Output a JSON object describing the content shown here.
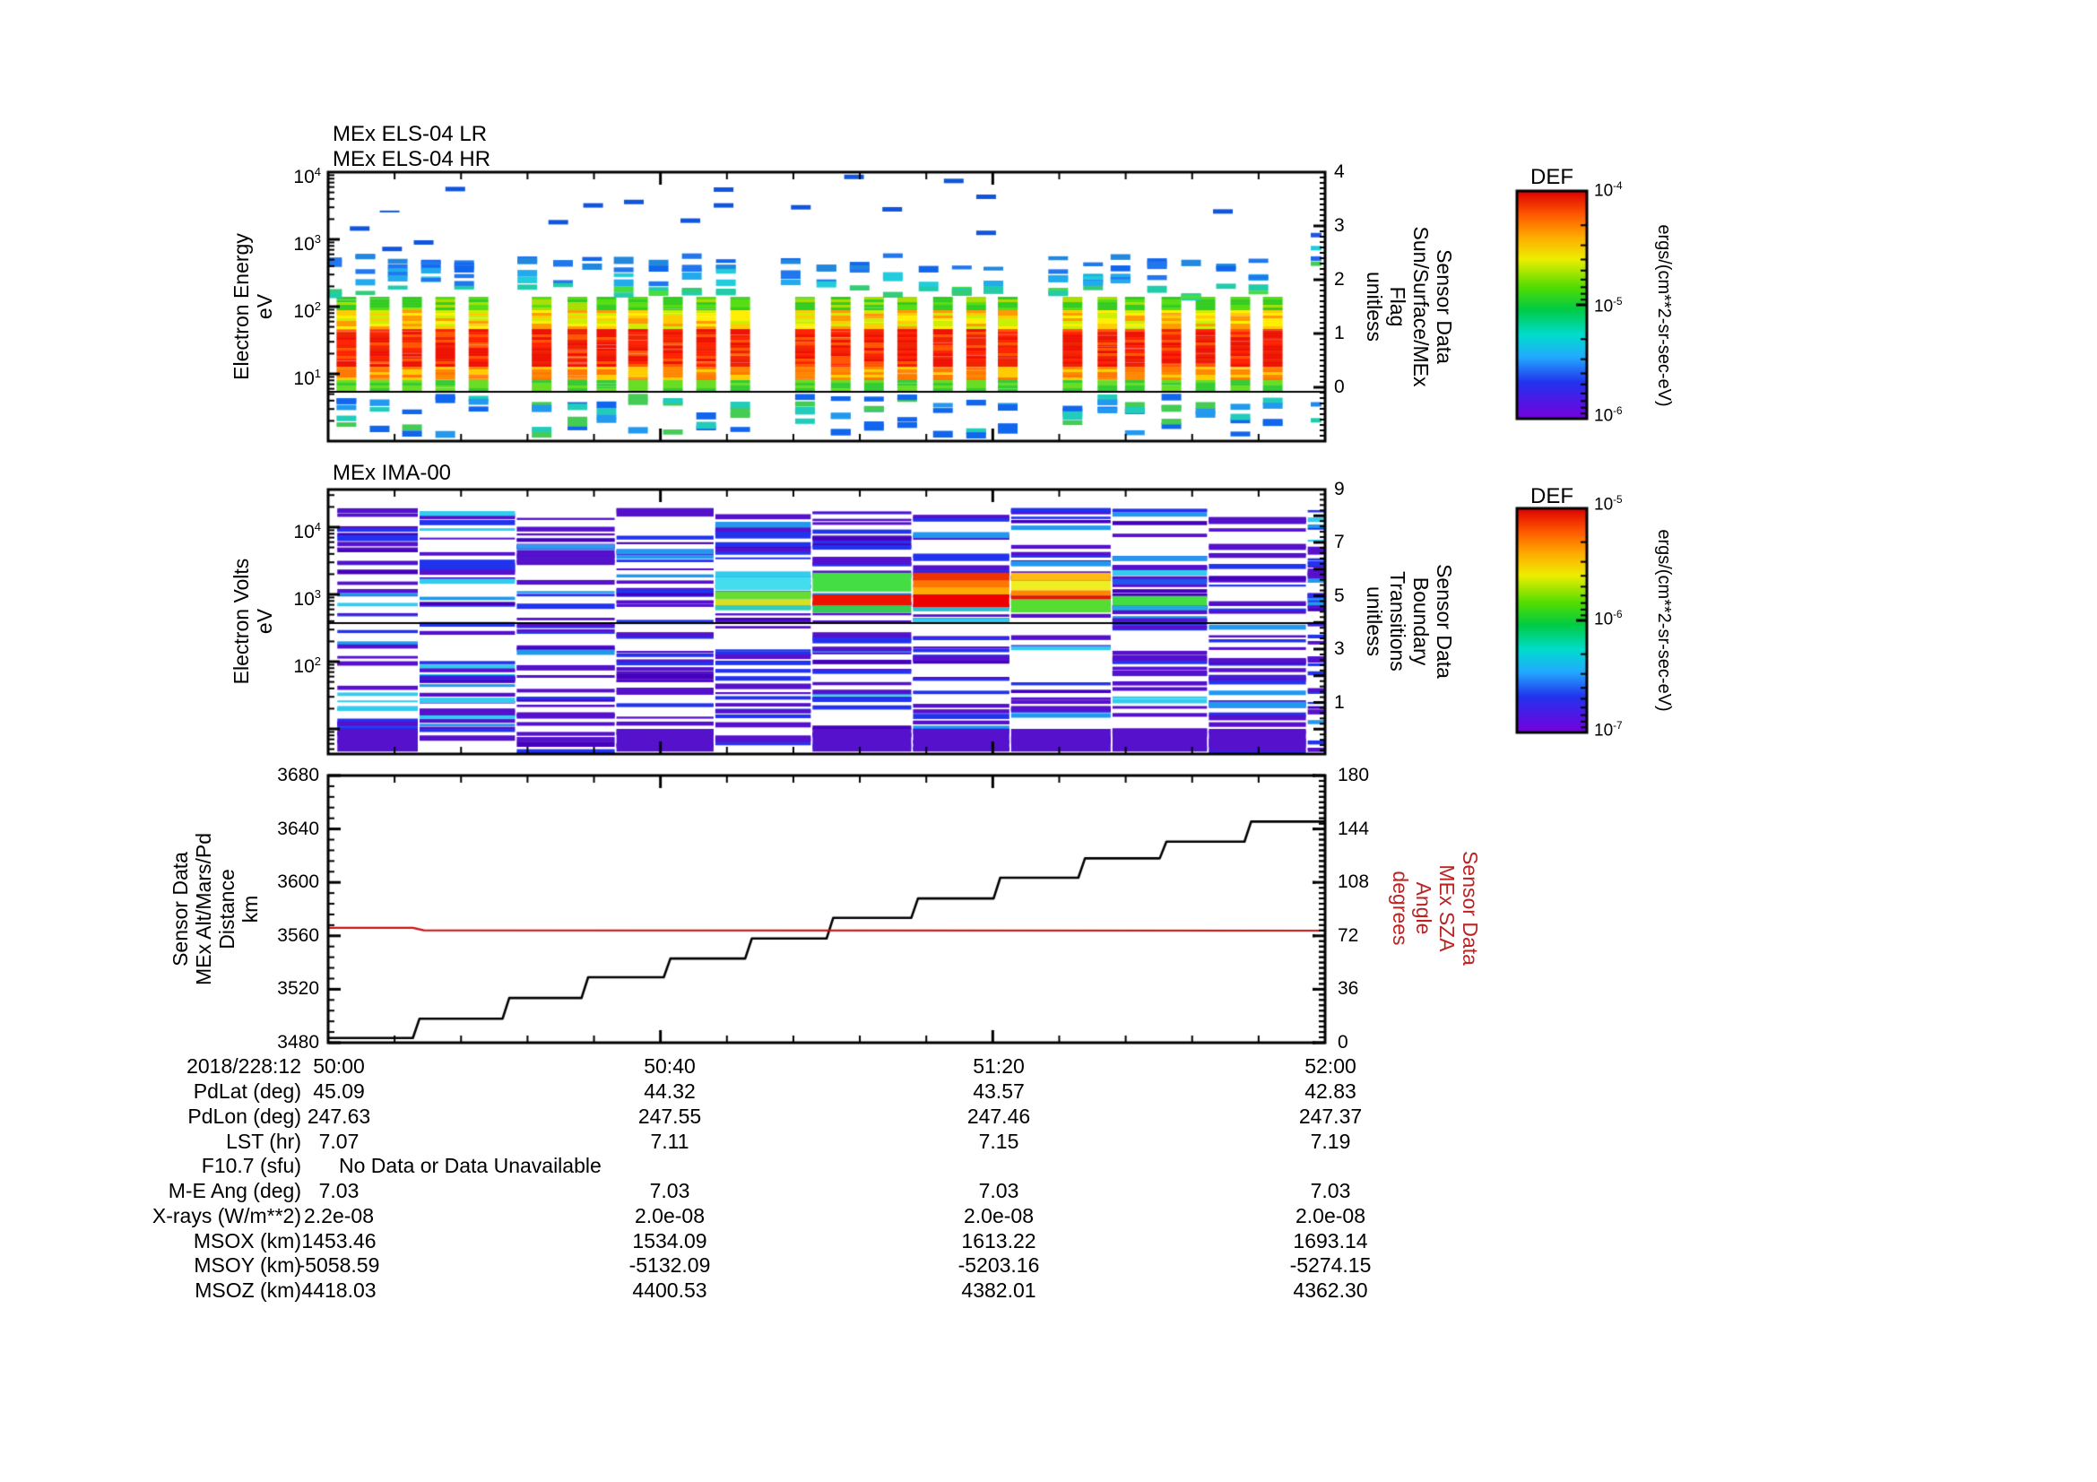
{
  "panels": {
    "els": {
      "titles": [
        "MEx ELS-04 LR",
        "MEx ELS-04 HR"
      ],
      "left_label": [
        "Electron Energy",
        "eV"
      ],
      "yticks": [
        {
          "base": "10",
          "exp": "4"
        },
        {
          "base": "10",
          "exp": "3"
        },
        {
          "base": "10",
          "exp": "2"
        },
        {
          "base": "10",
          "exp": "1"
        }
      ],
      "right_ticks": [
        "4",
        "3",
        "2",
        "1",
        "0"
      ],
      "right_label": [
        "Sensor Data",
        "Sun/Surface/MEx",
        "Flag",
        "unitless"
      ]
    },
    "ima": {
      "title": "MEx IMA-00",
      "left_label": [
        "Electron Volts",
        "eV"
      ],
      "yticks": [
        {
          "base": "10",
          "exp": "4"
        },
        {
          "base": "10",
          "exp": "3"
        },
        {
          "base": "10",
          "exp": "2"
        }
      ],
      "right_ticks": [
        "9",
        "7",
        "5",
        "3",
        "1"
      ],
      "right_label": [
        "Sensor Data",
        "Boundary",
        "Transitions",
        "unitless"
      ]
    },
    "alt": {
      "left_label": [
        "Sensor Data",
        "MEx Alt/Mars/Pd",
        "Distance",
        "km"
      ],
      "yticks": [
        "3680",
        "3640",
        "3600",
        "3560",
        "3520",
        "3480"
      ],
      "right_ticks": [
        "180",
        "144",
        "108",
        "72",
        "36",
        "0"
      ],
      "right_label": [
        "Sensor Data",
        "MEx SZA",
        "Angle",
        "degrees"
      ],
      "right_color": "#bb2222"
    }
  },
  "colorbars": [
    {
      "title": "DEF",
      "labels": [
        {
          "base": "10",
          "exp": "-4"
        },
        {
          "base": "10",
          "exp": "-5"
        },
        {
          "base": "10",
          "exp": "-6"
        }
      ],
      "unit": "ergs/(cm**2-sr-sec-eV)"
    },
    {
      "title": "DEF",
      "labels": [
        {
          "base": "10",
          "exp": "-5"
        },
        {
          "base": "10",
          "exp": "-6"
        },
        {
          "base": "10",
          "exp": "-7"
        }
      ],
      "unit": "ergs/(cm**2-sr-sec-eV)"
    }
  ],
  "table": {
    "rows": [
      {
        "label": "2018/228:12",
        "values": [
          "50:00",
          "50:40",
          "51:20",
          "52:00"
        ]
      },
      {
        "label": "PdLat (deg)",
        "values": [
          "45.09",
          "44.32",
          "43.57",
          "42.83"
        ]
      },
      {
        "label": "PdLon (deg)",
        "values": [
          "247.63",
          "247.55",
          "247.46",
          "247.37"
        ]
      },
      {
        "label": "LST (hr)",
        "values": [
          "7.07",
          "7.11",
          "7.15",
          "7.19"
        ]
      },
      {
        "label": "F10.7 (sfu)",
        "note": "No Data or Data Unavailable"
      },
      {
        "label": "M-E Ang (deg)",
        "values": [
          "7.03",
          "7.03",
          "7.03",
          "7.03"
        ]
      },
      {
        "label": "X-rays (W/m**2)",
        "values": [
          "2.2e-08",
          "2.0e-08",
          "2.0e-08",
          "2.0e-08"
        ]
      },
      {
        "label": "MSOX (km)",
        "values": [
          "1453.46",
          "1534.09",
          "1613.22",
          "1693.14"
        ]
      },
      {
        "label": "MSOY (km)",
        "values": [
          "-5058.59",
          "-5132.09",
          "-5203.16",
          "-5274.15"
        ]
      },
      {
        "label": "MSOZ (km)",
        "values": [
          "4418.03",
          "4400.53",
          "4382.01",
          "4362.30"
        ]
      }
    ]
  },
  "chart_data": [
    {
      "type": "heatmap",
      "subtype": "spectrogram",
      "title": "MEx ELS-04 LR / MEx ELS-04 HR",
      "xlabel": "time from 2018/228:12 50:00 to 52:00",
      "x_range_sec": [
        0,
        120
      ],
      "ylabel": "Electron Energy eV",
      "y_range_ev": [
        1,
        10000
      ],
      "y_scale": "log",
      "flux_unit": "ergs/(cm**2-sr-sec-eV)",
      "flux_range": [
        1e-06,
        0.0001
      ],
      "right_axis": {
        "label": "Sensor Data Sun/Surface/MEx Flag unitless",
        "range": [
          -1,
          4
        ],
        "flag_line_value": 0
      },
      "column_centers_sec": [
        2.2,
        6.2,
        10.1,
        14.1,
        18.1,
        25.7,
        30.0,
        33.5,
        37.3,
        41.5,
        45.5,
        49.6,
        57.4,
        61.7,
        65.7,
        69.7,
        74.0,
        78.0,
        81.8,
        89.6,
        93.8,
        97.1,
        101.5,
        105.6,
        109.8,
        113.7
      ],
      "column_width_sec": 2.4,
      "main_band_ev": [
        6,
        140
      ],
      "core_red_ev": [
        13,
        48
      ],
      "upper_band_ev": [
        150,
        620
      ],
      "low_band_ev": [
        1.35,
        5.2
      ],
      "dashes_sec_ev": [
        [
          3.8,
          1450
        ],
        [
          7.4,
          2600
        ],
        [
          7.7,
          720
        ],
        [
          11.5,
          900
        ],
        [
          15.3,
          5600
        ],
        [
          27.7,
          1800
        ],
        [
          31.9,
          3200
        ],
        [
          36.8,
          3600
        ],
        [
          43.6,
          1900
        ],
        [
          47.6,
          5500
        ],
        [
          47.6,
          3200
        ],
        [
          56.9,
          3000
        ],
        [
          63.3,
          8500
        ],
        [
          67.9,
          2800
        ],
        [
          75.3,
          7400
        ],
        [
          79.2,
          4300
        ],
        [
          79.2,
          1250
        ],
        [
          107.7,
          2600
        ]
      ],
      "edge_column_stripes_ev": [
        1250,
        800,
        560,
        470,
        3.8,
        2.2
      ]
    },
    {
      "type": "heatmap",
      "subtype": "spectrogram",
      "title": "MEx IMA-00",
      "xlabel": "time from 2018/228:12 50:00 to 52:00",
      "x_range_sec": [
        0,
        120
      ],
      "ylabel": "Electron Volts eV",
      "y_range_ev": [
        4.3,
        36000
      ],
      "y_scale": "log",
      "flux_unit": "ergs/(cm**2-sr-sec-eV)",
      "flux_range": [
        1e-07,
        1e-05
      ],
      "right_axis": {
        "label": "Sensor Data Boundary Transitions unitless",
        "range": [
          -1,
          9
        ],
        "boundary_line_value": 4
      },
      "column_edges_sec": [
        1.0,
        10.9,
        22.6,
        34.6,
        46.5,
        58.2,
        70.3,
        82.1,
        94.3,
        105.9,
        117.8,
        120
      ],
      "beam_bands_ev_by_column": {
        "2": [
          [
            5600,
            4800,
            "#3399ee"
          ]
        ],
        "4": [
          [
            2200,
            1800,
            "#33ccee"
          ],
          [
            1800,
            1150,
            "#44ddee"
          ],
          [
            1100,
            840,
            "#66dd33"
          ],
          [
            840,
            690,
            "#dddd22"
          ],
          [
            690,
            580,
            "#33ccbb"
          ]
        ],
        "5": [
          [
            2100,
            1100,
            "#44dd44"
          ],
          [
            1000,
            690,
            "#ee1100"
          ],
          [
            690,
            540,
            "#33cc55"
          ]
        ],
        "6": [
          [
            2100,
            1600,
            "#ee3300"
          ],
          [
            1600,
            1250,
            "#ff7700"
          ],
          [
            1250,
            1000,
            "#ffaa00"
          ],
          [
            1000,
            650,
            "#ee0000"
          ],
          [
            650,
            560,
            "#33bbcc"
          ]
        ],
        "7": [
          [
            2100,
            1600,
            "#ffbb11"
          ],
          [
            1600,
            1150,
            "#eeee22"
          ],
          [
            1150,
            950,
            "#ff8800"
          ],
          [
            950,
            840,
            "#ee1100"
          ],
          [
            840,
            540,
            "#55dd33"
          ]
        ],
        "8": [
          [
            2300,
            1900,
            "#33ccee"
          ],
          [
            1700,
            1400,
            "#2255ee"
          ],
          [
            950,
            680,
            "#44dd44"
          ],
          [
            680,
            580,
            "#22aadd"
          ]
        ]
      },
      "bottom_block_columns": [
        0,
        3,
        5,
        6,
        7,
        8,
        9
      ],
      "bottom_block_ev": [
        10,
        4.6
      ],
      "bottom_stripe_columns": [
        1,
        4
      ]
    },
    {
      "type": "line",
      "xlabel": "2018/228:12",
      "xtick_labels": [
        "50:00",
        "50:40",
        "51:20",
        "52:00"
      ],
      "x_range_sec": [
        0,
        120
      ],
      "ylim_left": [
        3480,
        3680
      ],
      "yticks_left": [
        3480,
        3520,
        3560,
        3600,
        3640,
        3680
      ],
      "ylabel_left": "Sensor Data MEx Alt/Mars/Pd Distance km",
      "ylim_right": [
        0,
        180
      ],
      "yticks_right": [
        0,
        36,
        72,
        108,
        144,
        180
      ],
      "ylabel_right": "Sensor Data MEx SZA Angle degrees",
      "series": [
        {
          "name": "MEx Alt/Mars/Pd Distance",
          "axis": "left",
          "color": "#000000",
          "points": [
            [
              0,
              3483.5
            ],
            [
              10.2,
              3483.5
            ],
            [
              11.0,
              3498
            ],
            [
              21.0,
              3498
            ],
            [
              21.8,
              3513.5
            ],
            [
              30.5,
              3513.5
            ],
            [
              31.3,
              3529
            ],
            [
              40.4,
              3529
            ],
            [
              41.2,
              3543
            ],
            [
              50.2,
              3543
            ],
            [
              51.0,
              3558
            ],
            [
              60.0,
              3558
            ],
            [
              60.8,
              3573.5
            ],
            [
              70.2,
              3573.5
            ],
            [
              71.0,
              3588
            ],
            [
              80.1,
              3588
            ],
            [
              80.9,
              3603.5
            ],
            [
              90.3,
              3603.5
            ],
            [
              91.1,
              3618
            ],
            [
              100.1,
              3618
            ],
            [
              100.9,
              3630.5
            ],
            [
              110.3,
              3630.5
            ],
            [
              111.1,
              3645.5
            ],
            [
              120,
              3645.5
            ]
          ]
        },
        {
          "name": "MEx SZA Angle",
          "axis": "right",
          "color": "#cc1111",
          "points": [
            [
              0,
              77.4
            ],
            [
              10.2,
              77.4
            ],
            [
              11.5,
              75.7
            ],
            [
              120,
              75.5
            ]
          ]
        }
      ]
    }
  ]
}
